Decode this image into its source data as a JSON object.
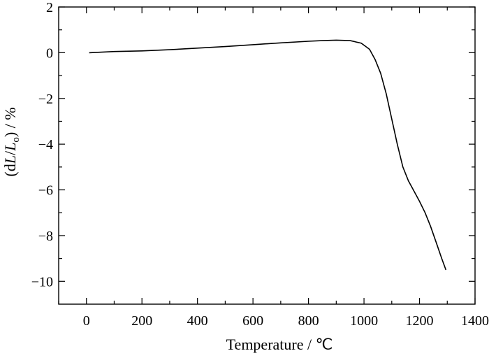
{
  "chart_data": {
    "type": "line",
    "xlabel": "Temperature / ℃",
    "ylabel_parts": [
      "(d",
      "L",
      "/",
      "L",
      "o",
      ") / %"
    ],
    "xlim": [
      -100,
      1400
    ],
    "ylim": [
      -11,
      2
    ],
    "x_ticks": [
      0,
      200,
      400,
      600,
      800,
      1000,
      1200,
      1400
    ],
    "y_ticks": [
      2,
      0,
      -2,
      -4,
      -6,
      -8,
      -10
    ],
    "x_tick_labels": [
      "0",
      "200",
      "400",
      "600",
      "800",
      "1000",
      "1200",
      "1400"
    ],
    "y_tick_labels": [
      "2",
      "0",
      "−2",
      "−4",
      "−6",
      "−8",
      "−10"
    ],
    "x_minor_ticks": [
      -100,
      100,
      300,
      500,
      700,
      900,
      1100,
      1300
    ],
    "y_minor_ticks": [
      1,
      -1,
      -3,
      -5,
      -7,
      -9
    ],
    "grid": false,
    "series": [
      {
        "x": [
          10,
          100,
          200,
          300,
          400,
          500,
          600,
          700,
          800,
          850,
          900,
          950,
          990,
          1020,
          1040,
          1060,
          1080,
          1100,
          1120,
          1140,
          1160,
          1180,
          1200,
          1220,
          1240,
          1260,
          1280,
          1295
        ],
        "y": [
          0.0,
          0.05,
          0.08,
          0.13,
          0.2,
          0.27,
          0.35,
          0.43,
          0.5,
          0.53,
          0.55,
          0.53,
          0.42,
          0.15,
          -0.3,
          -0.9,
          -1.8,
          -2.9,
          -4.0,
          -5.0,
          -5.6,
          -6.05,
          -6.5,
          -7.0,
          -7.6,
          -8.3,
          -9.0,
          -9.5
        ]
      }
    ]
  }
}
